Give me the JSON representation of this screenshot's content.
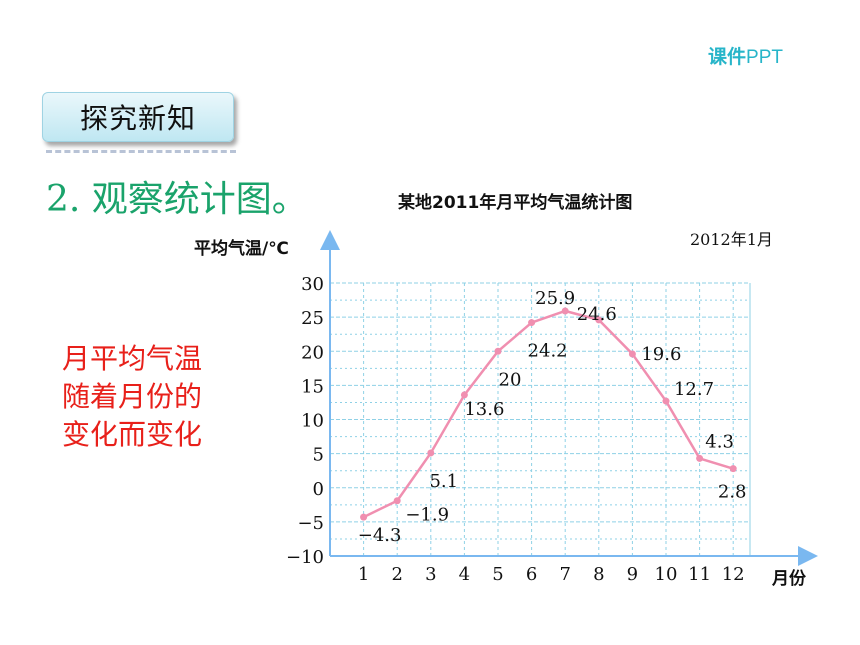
{
  "header": {
    "brand_prefix": "课件",
    "brand_suffix": "PPT"
  },
  "section": {
    "tag": "探究新知"
  },
  "subtitle": "2. 观察统计图。",
  "note": {
    "lines": [
      "月平均气温",
      "随着月份的",
      "变化而变化"
    ]
  },
  "colors": {
    "line": "#f08fb0",
    "grid": "#8fd1e6",
    "axis": "#7ab8f0",
    "note": "#e8201a",
    "subtitle": "#1aa36b"
  },
  "chart_data": {
    "type": "line",
    "title": "某地2011年月平均气温统计图",
    "date_note": "2012年1月",
    "ylabel": "平均气温/℃",
    "xlabel": "月份",
    "ylim": [
      -10,
      30
    ],
    "ytick_step": 5,
    "grid": true,
    "x": [
      1,
      2,
      3,
      4,
      5,
      6,
      7,
      8,
      9,
      10,
      11,
      12
    ],
    "ytick_labels": [
      "−10",
      "−5",
      "0",
      "5",
      "10",
      "15",
      "20",
      "25",
      "30"
    ],
    "series": [
      {
        "values": [
          -4.3,
          -1.9,
          5.1,
          13.6,
          20,
          24.2,
          25.9,
          24.6,
          19.6,
          12.7,
          4.3,
          2.8
        ]
      }
    ],
    "data_labels": [
      "−4.3",
      "−1.9",
      "5.1",
      "13.6",
      "20",
      "24.2",
      "25.9",
      "24.6",
      "19.6",
      "12.7",
      "4.3",
      "2.8"
    ]
  }
}
